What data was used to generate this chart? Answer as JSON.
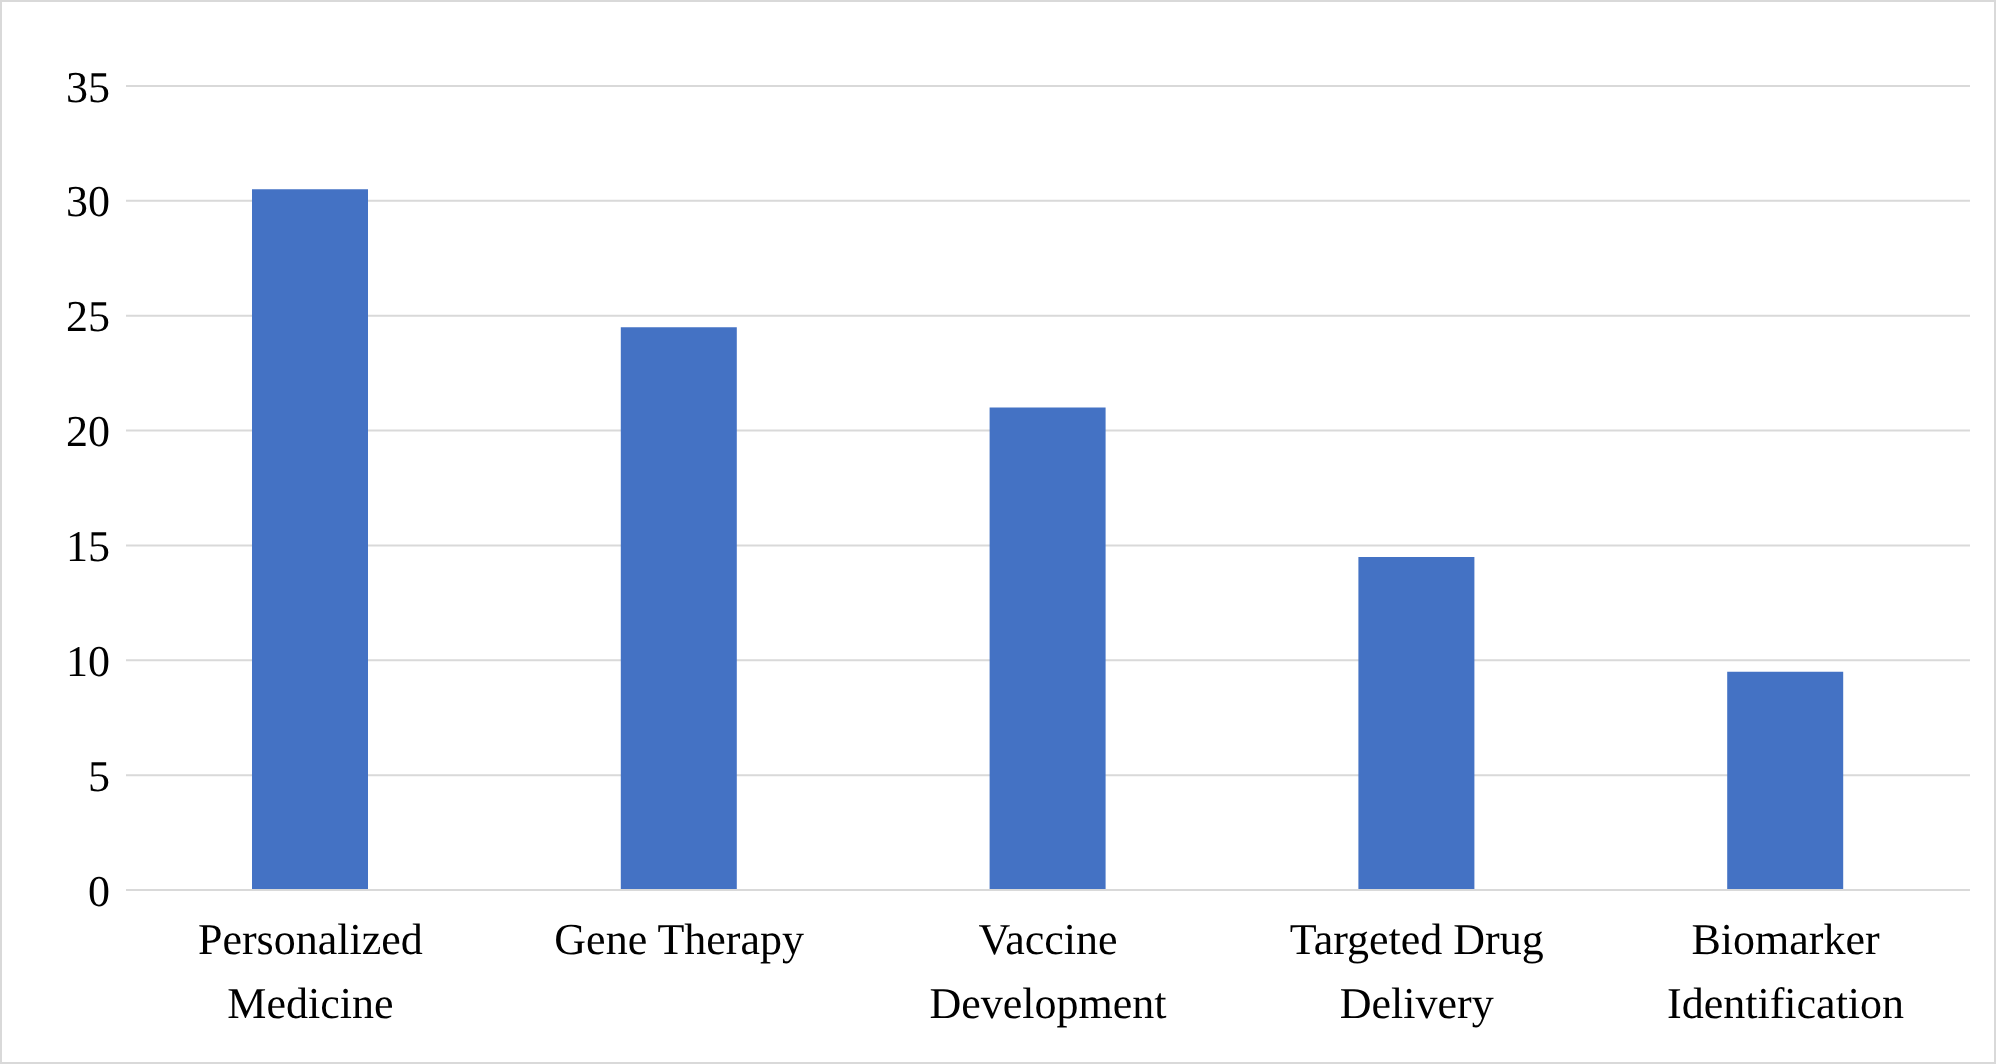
{
  "chart_data": {
    "type": "bar",
    "categories": [
      "Personalized Medicine",
      "Gene Therapy",
      "Vaccine Development",
      "Targeted Drug Delivery",
      "Biomarker Identification"
    ],
    "values": [
      30.5,
      24.5,
      21,
      14.5,
      9.5
    ],
    "color": "#4472c4",
    "ylim": [
      0,
      35
    ],
    "yticks": [
      0,
      5,
      10,
      15,
      20,
      25,
      30,
      35
    ],
    "grid": "y",
    "legend": false
  }
}
